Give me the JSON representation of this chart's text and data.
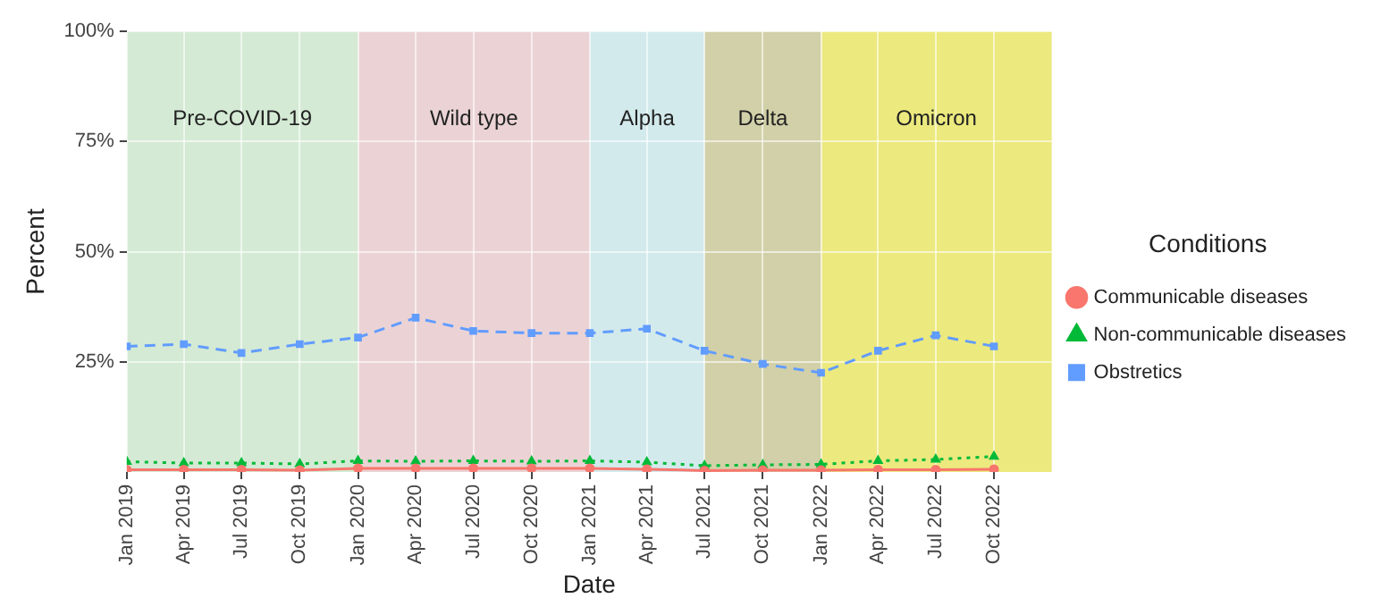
{
  "chart_data": {
    "type": "line",
    "xlabel": "Date",
    "ylabel": "Percent",
    "legend_title": "Conditions",
    "x": [
      "2019-01-01",
      "2019-04-01",
      "2019-07-01",
      "2019-10-01",
      "2020-01-01",
      "2020-04-01",
      "2020-07-01",
      "2020-10-01",
      "2021-01-01",
      "2021-04-01",
      "2021-07-01",
      "2021-10-01",
      "2022-01-01",
      "2022-04-01",
      "2022-07-01",
      "2022-10-01"
    ],
    "series": [
      {
        "name": "Communicable diseases",
        "color": "#f8766d",
        "marker": "circle",
        "line_style": "solid",
        "values": [
          0.5,
          0.5,
          0.5,
          0.4,
          0.8,
          0.8,
          0.8,
          0.8,
          0.8,
          0.6,
          0.3,
          0.4,
          0.4,
          0.5,
          0.5,
          0.6
        ]
      },
      {
        "name": "Non-communicable diseases",
        "color": "#00ba38",
        "marker": "triangle",
        "line_style": "dotted",
        "values": [
          2.3,
          2,
          2,
          1.8,
          2.5,
          2.4,
          2.5,
          2.4,
          2.5,
          2.2,
          1.4,
          1.6,
          1.7,
          2.5,
          2.8,
          3.5
        ]
      },
      {
        "name": "Obstretics",
        "color": "#619cff",
        "marker": "square",
        "line_style": "dashed",
        "values": [
          28.5,
          29,
          27,
          29,
          30.5,
          35,
          32,
          31.5,
          31.5,
          32.5,
          27.5,
          24.5,
          22.5,
          27.5,
          31,
          28.5
        ]
      }
    ],
    "xlim": [
      "2019-01-01",
      "2022-12-31"
    ],
    "xticks": [
      {
        "value": "2019-01-01",
        "label": "Jan 2019"
      },
      {
        "value": "2019-04-01",
        "label": "Apr 2019"
      },
      {
        "value": "2019-07-01",
        "label": "Jul 2019"
      },
      {
        "value": "2019-10-01",
        "label": "Oct 2019"
      },
      {
        "value": "2020-01-01",
        "label": "Jan 2020"
      },
      {
        "value": "2020-04-01",
        "label": "Apr 2020"
      },
      {
        "value": "2020-07-01",
        "label": "Jul 2020"
      },
      {
        "value": "2020-10-01",
        "label": "Oct 2020"
      },
      {
        "value": "2021-01-01",
        "label": "Jan 2021"
      },
      {
        "value": "2021-04-01",
        "label": "Apr 2021"
      },
      {
        "value": "2021-07-01",
        "label": "Jul 2021"
      },
      {
        "value": "2021-10-01",
        "label": "Oct 2021"
      },
      {
        "value": "2022-01-01",
        "label": "Jan 2022"
      },
      {
        "value": "2022-04-01",
        "label": "Apr 2022"
      },
      {
        "value": "2022-07-01",
        "label": "Jul 2022"
      },
      {
        "value": "2022-10-01",
        "label": "Oct 2022"
      }
    ],
    "ylim": [
      0,
      100
    ],
    "yticks": [
      {
        "value": 25,
        "label": "25%"
      },
      {
        "value": 50,
        "label": "50%"
      },
      {
        "value": 75,
        "label": "75%"
      },
      {
        "value": 100,
        "label": "100%"
      }
    ],
    "bands": [
      {
        "axis": "x",
        "from": "2019-01-01",
        "to": "2020-01-01",
        "label": "Pre-COVID-19",
        "color": "#d4ead4"
      },
      {
        "axis": "x",
        "from": "2020-01-01",
        "to": "2021-01-01",
        "label": "Wild type",
        "color": "#ebd3d5"
      },
      {
        "axis": "x",
        "from": "2021-01-01",
        "to": "2021-07-01",
        "label": "Alpha",
        "color": "#d3eaec"
      },
      {
        "axis": "x",
        "from": "2021-07-01",
        "to": "2022-01-01",
        "label": "Delta",
        "color": "#d2d0a8"
      },
      {
        "axis": "x",
        "from": "2022-01-01",
        "to": "2022-12-31",
        "label": "Omicron",
        "color": "#ece97e"
      }
    ],
    "grid": true,
    "legend": "right"
  }
}
